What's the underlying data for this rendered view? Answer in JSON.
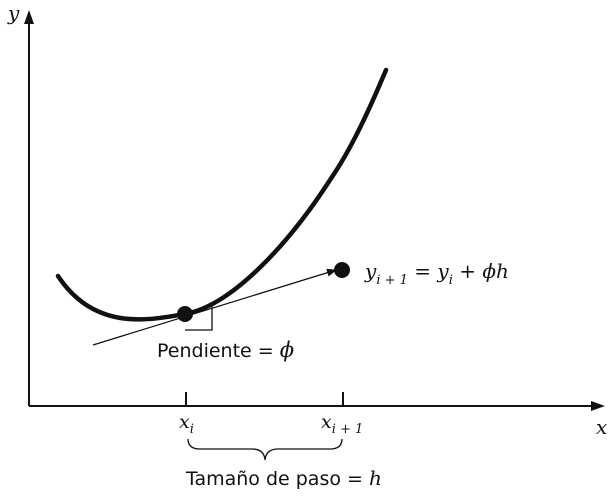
{
  "axes": {
    "y_label": "y",
    "x_label": "x"
  },
  "ticks": {
    "xi_base": "x",
    "xi_sub": "i",
    "xi1_base": "x",
    "xi1_sub": "i + 1"
  },
  "equation": {
    "y1": "y",
    "y1_sub": "i + 1",
    "eq": " = ",
    "y2": "y",
    "y2_sub": "i",
    "plus": " + ",
    "phi": "ϕ",
    "h": "h"
  },
  "slope_label": {
    "text": "Pendiente = ",
    "phi": "ϕ"
  },
  "step_label": {
    "text": "Tamaño de paso = ",
    "h": "h"
  },
  "colors": {
    "ink": "#111111",
    "background": "#ffffff"
  }
}
